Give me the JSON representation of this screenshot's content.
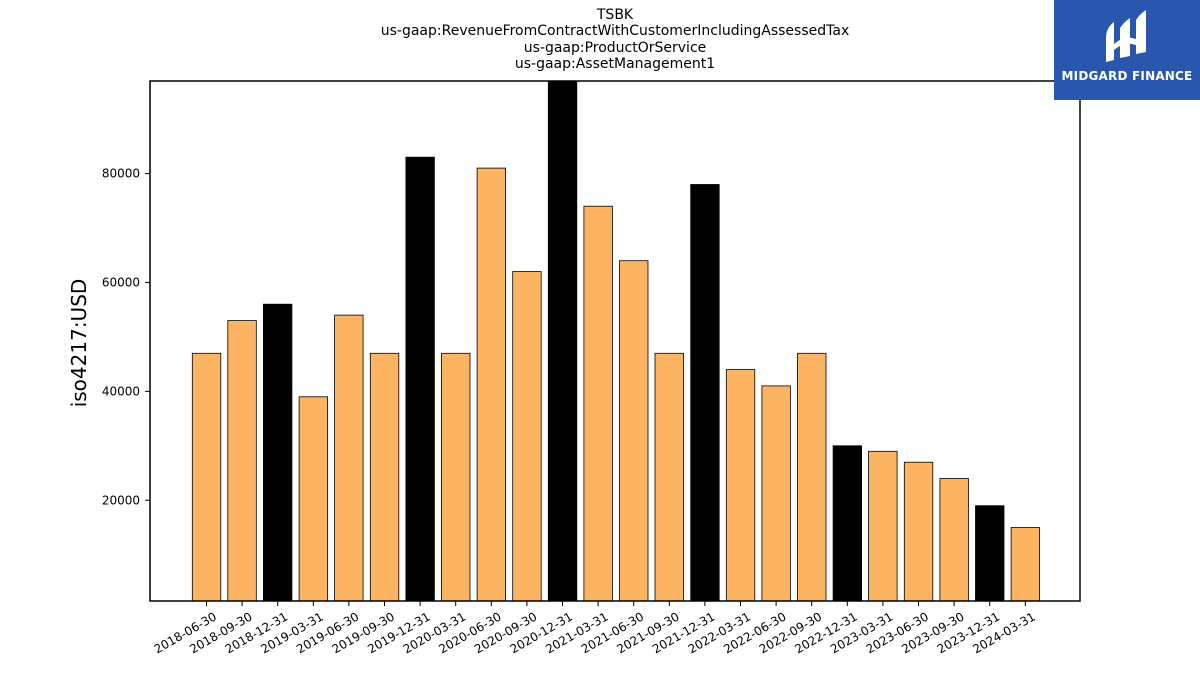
{
  "chart_data": {
    "type": "bar",
    "title_lines": [
      "TSBK",
      "us-gaap:RevenueFromContractWithCustomerIncludingAssessedTax",
      "us-gaap:ProductOrService",
      "us-gaap:AssetManagement1"
    ],
    "xlabel": "",
    "ylabel": "iso4217:USD",
    "ylim": [
      1500,
      97000
    ],
    "yticks": [
      20000,
      40000,
      60000,
      80000
    ],
    "grid": false,
    "categories": [
      "2018-06-30",
      "2018-09-30",
      "2018-12-31",
      "2019-03-31",
      "2019-06-30",
      "2019-09-30",
      "2019-12-31",
      "2020-03-31",
      "2020-06-30",
      "2020-09-30",
      "2020-12-31",
      "2021-03-31",
      "2021-06-30",
      "2021-09-30",
      "2021-12-31",
      "2022-03-31",
      "2022-06-30",
      "2022-09-30",
      "2022-12-31",
      "2023-03-31",
      "2023-06-30",
      "2023-09-30",
      "2023-12-31",
      "2024-03-31"
    ],
    "values": [
      47000,
      53000,
      56000,
      39000,
      54000,
      47000,
      83000,
      47000,
      81000,
      62000,
      97000,
      74000,
      64000,
      47000,
      78000,
      44000,
      41000,
      47000,
      30000,
      29000,
      27000,
      24000,
      19000,
      15000
    ],
    "bar_colors": [
      "#fdb462",
      "#fdb462",
      "#000000",
      "#fdb462",
      "#fdb462",
      "#fdb462",
      "#000000",
      "#fdb462",
      "#fdb462",
      "#fdb462",
      "#000000",
      "#fdb462",
      "#fdb462",
      "#fdb462",
      "#000000",
      "#fdb462",
      "#fdb462",
      "#fdb462",
      "#000000",
      "#fdb462",
      "#fdb462",
      "#fdb462",
      "#000000",
      "#fdb462"
    ],
    "colors": {
      "quarter": "#fdb462",
      "year_end": "#000000"
    }
  },
  "logo": {
    "text": "MIDGARD FINANCE",
    "color": "#2a56ad",
    "icon": "midgard-logo-icon"
  }
}
